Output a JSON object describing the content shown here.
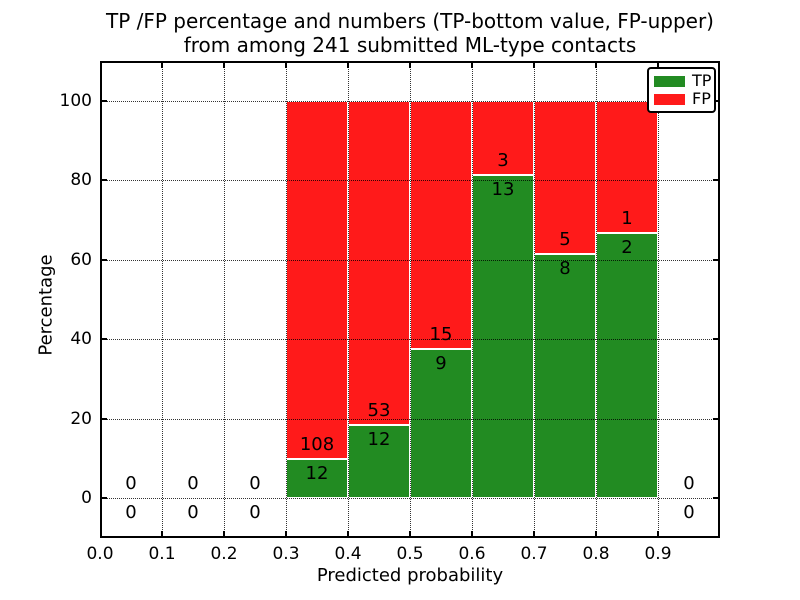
{
  "chart_data": {
    "type": "bar",
    "stacked": true,
    "unit": "percent",
    "title": "TP /FP percentage and numbers (TP-bottom value, FP-upper)\nfrom among 241 submitted ML-type contacts",
    "title_line1": "TP /FP percentage and numbers (TP-bottom value, FP-upper)",
    "title_line2": "from among 241 submitted ML-type contacts",
    "xlabel": "Predicted probability",
    "ylabel": "Percentage",
    "xlim": [
      0.0,
      1.0
    ],
    "ylim": [
      -10,
      110
    ],
    "xticks": [
      "0.0",
      "0.1",
      "0.2",
      "0.3",
      "0.4",
      "0.5",
      "0.6",
      "0.7",
      "0.8",
      "0.9"
    ],
    "yticks": [
      "0",
      "20",
      "40",
      "60",
      "80",
      "100"
    ],
    "grid": "dotted, drawn above bars",
    "legend_position": "upper right",
    "total_contacts": 241,
    "series": [
      {
        "name": "TP",
        "color": "#228b22"
      },
      {
        "name": "FP",
        "color": "#ff1a1a"
      }
    ],
    "bins": [
      {
        "x_start": 0.0,
        "x_end": 0.1,
        "tp_count": 0,
        "fp_count": 0,
        "tp_pct": 0,
        "fp_pct": 0
      },
      {
        "x_start": 0.1,
        "x_end": 0.2,
        "tp_count": 0,
        "fp_count": 0,
        "tp_pct": 0,
        "fp_pct": 0
      },
      {
        "x_start": 0.2,
        "x_end": 0.3,
        "tp_count": 0,
        "fp_count": 0,
        "tp_pct": 0,
        "fp_pct": 0
      },
      {
        "x_start": 0.3,
        "x_end": 0.4,
        "tp_count": 12,
        "fp_count": 108,
        "tp_pct": 10.0,
        "fp_pct": 90.0
      },
      {
        "x_start": 0.4,
        "x_end": 0.5,
        "tp_count": 12,
        "fp_count": 53,
        "tp_pct": 18.46,
        "fp_pct": 81.54
      },
      {
        "x_start": 0.5,
        "x_end": 0.6,
        "tp_count": 9,
        "fp_count": 15,
        "tp_pct": 37.5,
        "fp_pct": 62.5
      },
      {
        "x_start": 0.6,
        "x_end": 0.7,
        "tp_count": 13,
        "fp_count": 3,
        "tp_pct": 81.25,
        "fp_pct": 18.75
      },
      {
        "x_start": 0.7,
        "x_end": 0.8,
        "tp_count": 8,
        "fp_count": 5,
        "tp_pct": 61.54,
        "fp_pct": 38.46
      },
      {
        "x_start": 0.8,
        "x_end": 0.9,
        "tp_count": 2,
        "fp_count": 1,
        "tp_pct": 66.67,
        "fp_pct": 33.33
      },
      {
        "x_start": 0.9,
        "x_end": 1.0,
        "tp_count": 0,
        "fp_count": 0,
        "tp_pct": 0,
        "fp_pct": 0
      }
    ]
  }
}
